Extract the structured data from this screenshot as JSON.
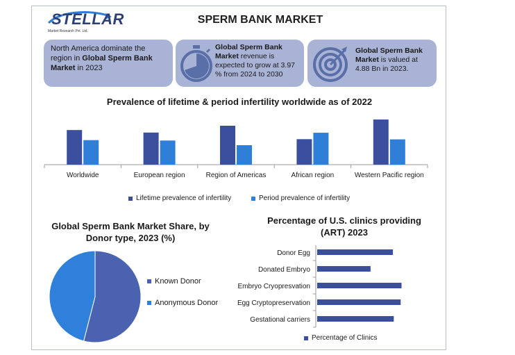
{
  "logo": {
    "name": "STELLAR",
    "subtitle": "Market Research Pvt. Ltd."
  },
  "page_title": "SPERM BANK MARKET",
  "cards": [
    {
      "text_before": "North America dominate the region in ",
      "bold": "Global Sperm Bank Market",
      "text_after": " in 2023",
      "icon": "none"
    },
    {
      "bold": "Global Sperm Bank Market",
      "text_after": " revenue is expected to grow at 3.97 % from 2024 to 2030",
      "icon": "stopwatch-icon"
    },
    {
      "bold": "Global Sperm Bank Market",
      "text_after": " is valued at 4.88 Bn in 2023.",
      "icon": "target-icon"
    }
  ],
  "colors": {
    "dark_blue": "#3c4f9e",
    "light_blue": "#2f7fd9",
    "card_bg": "#a9b3d6",
    "pie_known": "#4a62b0",
    "pie_anon": "#2e80db"
  },
  "chart_data": [
    {
      "type": "bar",
      "title": "Prevalence of lifetime & period infertility worldwide as of 2022",
      "categories": [
        "Worldwide",
        "European region",
        "Region of Americas",
        "African region",
        "Western Pacific region"
      ],
      "series": [
        {
          "name": "Lifetime prevalence of infertility",
          "values": [
            17.8,
            16.5,
            20.0,
            13.1,
            23.2
          ]
        },
        {
          "name": "Period prevalence of infertility",
          "values": [
            12.6,
            12.4,
            10.0,
            16.4,
            13.0
          ]
        }
      ],
      "ylim": [
        0,
        25
      ],
      "grid": false,
      "legend": "bottom"
    },
    {
      "type": "pie",
      "title": "Global Sperm Bank Market Share, by Donor type, 2023 (%)",
      "labels": [
        "Known Donor",
        "Anonymous Donor"
      ],
      "values": [
        54,
        46
      ],
      "legend": "right"
    },
    {
      "type": "bar",
      "orientation": "horizontal",
      "title": "Percentage of  U.S. clinics providing (ART) 2023",
      "categories": [
        "Donor Egg",
        "Donated Embryo",
        "Embryo Cryopresvation",
        "Egg Cryptopreservation",
        "Gestational carriers"
      ],
      "series": [
        {
          "name": "Percentage of Clinics",
          "values": [
            88,
            62,
            98,
            97,
            89
          ]
        }
      ],
      "xlim": [
        0,
        100
      ],
      "grid": false,
      "legend": "bottom"
    }
  ]
}
